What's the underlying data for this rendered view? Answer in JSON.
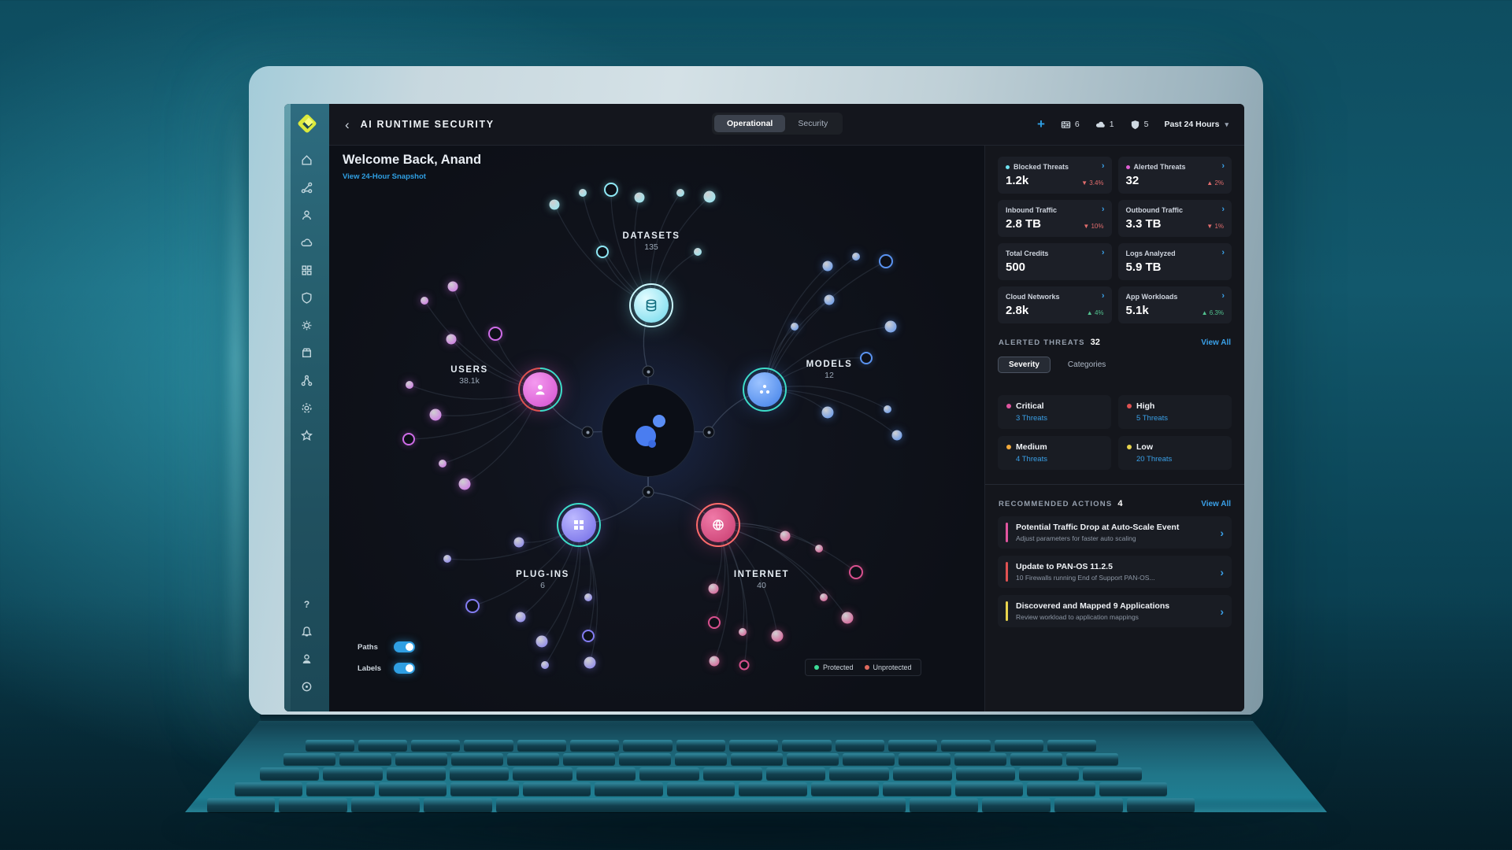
{
  "app": {
    "title": "AI RUNTIME SECURITY",
    "welcome": "Welcome Back, Anand",
    "snapshot_link": "View 24-Hour Snapshot",
    "tabs": [
      {
        "label": "Operational",
        "active": true
      },
      {
        "label": "Security",
        "active": false
      }
    ],
    "counters": [
      {
        "icon": "firewall-icon",
        "count": "6"
      },
      {
        "icon": "cloud-icon",
        "count": "1"
      },
      {
        "icon": "shield-icon",
        "count": "5"
      }
    ],
    "time_range": "Past 24 Hours",
    "accent_blue": "#2f9fe3"
  },
  "icons": {
    "back": "‹",
    "plus": "+",
    "chevron_down": "▾",
    "chevron_right": "›",
    "help": "?"
  },
  "sidebar": {
    "icons": [
      "home",
      "activity-nodes",
      "monitor",
      "cloud",
      "apps-grid",
      "shield",
      "gear",
      "inventory-box",
      "network-nodes",
      "settings-gear",
      "star"
    ],
    "footer_icons": [
      "help",
      "bell",
      "profile",
      "status-target"
    ]
  },
  "graph": {
    "clusters": [
      {
        "id": "datasets",
        "name": "DATASETS",
        "count": "135",
        "color": "#8fe9f6"
      },
      {
        "id": "users",
        "name": "USERS",
        "count": "38.1k",
        "color": "#e25fd2"
      },
      {
        "id": "models",
        "name": "MODELS",
        "count": "12",
        "color": "#4f8df2"
      },
      {
        "id": "plugins",
        "name": "PLUG-INS",
        "count": "6",
        "color": "#837df2"
      },
      {
        "id": "internet",
        "name": "INTERNET",
        "count": "40",
        "color": "#d8508e"
      }
    ],
    "toggles": [
      {
        "label": "Paths",
        "on": true
      },
      {
        "label": "Labels",
        "on": true
      }
    ],
    "legend": [
      {
        "label": "Protected",
        "color": "#3ddc97"
      },
      {
        "label": "Unprotected",
        "color": "#e06a5e"
      }
    ]
  },
  "stats": {
    "cards": [
      {
        "label": "Blocked Threats",
        "value": "1.2k",
        "delta": "▼ 3.4%",
        "delta_color": "#e26d6d",
        "dot": "#6fe3f2"
      },
      {
        "label": "Alerted Threats",
        "value": "32",
        "delta": "▲ 2%",
        "delta_color": "#e26d6d",
        "dot": "#e05fd4"
      },
      {
        "label": "Inbound Traffic",
        "value": "2.8 TB",
        "delta": "▼ 10%",
        "delta_color": "#e26d6d"
      },
      {
        "label": "Outbound Traffic",
        "value": "3.3 TB",
        "delta": "▼ 1%",
        "delta_color": "#e26d6d"
      },
      {
        "label": "Total Credits",
        "value": "500",
        "delta": ""
      },
      {
        "label": "Logs Analyzed",
        "value": "5.9 TB",
        "delta": ""
      },
      {
        "label": "Cloud Networks",
        "value": "2.8k",
        "delta": "▲ 4%",
        "delta_color": "#52c28f"
      },
      {
        "label": "App Workloads",
        "value": "5.1k",
        "delta": "▲ 6.3%",
        "delta_color": "#52c28f"
      }
    ]
  },
  "alerted_threats": {
    "title": "ALERTED THREATS",
    "count": "32",
    "view_all": "View All",
    "tabs": [
      {
        "label": "Severity",
        "active": true
      },
      {
        "label": "Categories",
        "active": false
      }
    ],
    "severities": [
      {
        "label": "Critical",
        "threats": "3 Threats",
        "color": "#e0559f"
      },
      {
        "label": "High",
        "threats": "5 Threats",
        "color": "#e05252"
      },
      {
        "label": "Medium",
        "threats": "4 Threats",
        "color": "#f2a93b"
      },
      {
        "label": "Low",
        "threats": "20 Threats",
        "color": "#e8d44d"
      }
    ]
  },
  "recommended_actions": {
    "title": "RECOMMENDED ACTIONS",
    "count": "4",
    "view_all": "View All",
    "items": [
      {
        "title": "Potential Traffic Drop at Auto-Scale Event",
        "subtitle": "Adjust parameters for faster auto scaling",
        "color": "#e0559f"
      },
      {
        "title": "Update to PAN-OS 11.2.5",
        "subtitle": "10 Firewalls running End of Support PAN-OS...",
        "color": "#e05252"
      },
      {
        "title": "Discovered and Mapped 9 Applications",
        "subtitle": "Review workload to application mappings",
        "color": "#e8d44d"
      }
    ]
  }
}
